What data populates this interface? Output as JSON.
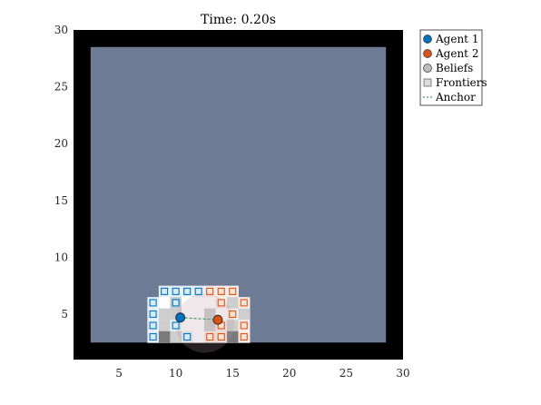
{
  "chart_data": {
    "type": "scatter",
    "title": "Time: 0.20s",
    "xlabel": "",
    "ylabel": "",
    "xlim": [
      1,
      30
    ],
    "ylim": [
      1,
      30
    ],
    "xticks": [
      5,
      10,
      15,
      20,
      25,
      30
    ],
    "yticks": [
      5,
      10,
      15,
      20,
      25,
      30
    ],
    "grid": false,
    "legend_placement": "outside-top-right",
    "colors": {
      "wall": "#000000",
      "unknown": "#6e7b95",
      "known_floor": "#ffffff",
      "agent1": "#0072bd",
      "agent2": "#d95319",
      "belief": "#bdbdbd",
      "anchor": "#4a9a6a"
    },
    "map": {
      "wall_outer": [
        1,
        1,
        30,
        30
      ],
      "unknown_interior": [
        2.5,
        2.5,
        28.5,
        28.5
      ]
    },
    "known_cells": [
      [
        9,
        7
      ],
      [
        10,
        7
      ],
      [
        11,
        7
      ],
      [
        12,
        7
      ],
      [
        13,
        7
      ],
      [
        14,
        7
      ],
      [
        15,
        7
      ],
      [
        8,
        6
      ],
      [
        9,
        6
      ],
      [
        10,
        6
      ],
      [
        11,
        6
      ],
      [
        12,
        6
      ],
      [
        13,
        6
      ],
      [
        14,
        6
      ],
      [
        15,
        6
      ],
      [
        16,
        6
      ],
      [
        8,
        5
      ],
      [
        9,
        5
      ],
      [
        10,
        5
      ],
      [
        11,
        5
      ],
      [
        12,
        5
      ],
      [
        13,
        5
      ],
      [
        14,
        5
      ],
      [
        15,
        5
      ],
      [
        16,
        5
      ],
      [
        8,
        4
      ],
      [
        9,
        4
      ],
      [
        10,
        4
      ],
      [
        11,
        4
      ],
      [
        12,
        4
      ],
      [
        13,
        4
      ],
      [
        14,
        4
      ],
      [
        15,
        4
      ],
      [
        16,
        4
      ],
      [
        8,
        3
      ],
      [
        9,
        3
      ],
      [
        10,
        3
      ],
      [
        11,
        3
      ],
      [
        12,
        3
      ],
      [
        13,
        3
      ],
      [
        14,
        3
      ],
      [
        15,
        3
      ],
      [
        16,
        3
      ]
    ],
    "belief_cells": [
      [
        10,
        6
      ],
      [
        15,
        6
      ],
      [
        9,
        5
      ],
      [
        10,
        5
      ],
      [
        13,
        5
      ],
      [
        16,
        5
      ],
      [
        9,
        4
      ],
      [
        13,
        4
      ],
      [
        15,
        4
      ],
      [
        10,
        3
      ],
      [
        15,
        3
      ]
    ],
    "series": [
      {
        "name": "Agent 1",
        "color": "#0072bd",
        "marker": "circle",
        "points": [
          [
            10.4,
            4.7
          ]
        ],
        "frontiers": [
          [
            9,
            7
          ],
          [
            10,
            7
          ],
          [
            11,
            7
          ],
          [
            12,
            7
          ],
          [
            8,
            6
          ],
          [
            10,
            6
          ],
          [
            8,
            5
          ],
          [
            8,
            4
          ],
          [
            10,
            4
          ],
          [
            8,
            3
          ],
          [
            11,
            3
          ]
        ]
      },
      {
        "name": "Agent 2",
        "color": "#d95319",
        "marker": "circle",
        "points": [
          [
            13.7,
            4.5
          ]
        ],
        "frontiers": [
          [
            13,
            7
          ],
          [
            14,
            7
          ],
          [
            15,
            7
          ],
          [
            14,
            6
          ],
          [
            16,
            6
          ],
          [
            15,
            5
          ],
          [
            14,
            4
          ],
          [
            16,
            4
          ],
          [
            13,
            3
          ],
          [
            14,
            3
          ],
          [
            16,
            3
          ]
        ]
      }
    ],
    "anchor_line": [
      [
        10.4,
        4.7
      ],
      [
        13.7,
        4.5
      ]
    ],
    "legend": [
      {
        "label": "Agent 1",
        "symbol": "circle",
        "color": "#0072bd"
      },
      {
        "label": "Agent 2",
        "symbol": "circle",
        "color": "#d95319"
      },
      {
        "label": "Beliefs",
        "symbol": "circle",
        "color": "#bdbdbd"
      },
      {
        "label": "Frontiers",
        "symbol": "square",
        "color": "#bdbdbd"
      },
      {
        "label": "Anchor",
        "symbol": "dashed-line",
        "color": "#4a9a6a"
      }
    ]
  }
}
